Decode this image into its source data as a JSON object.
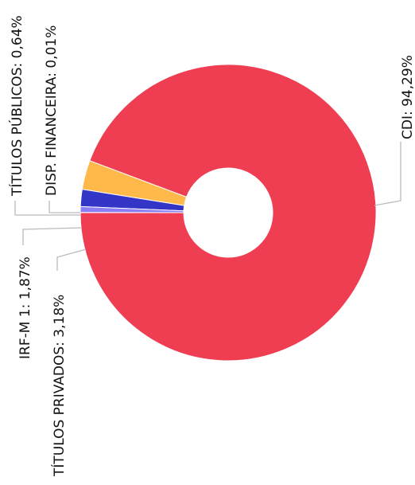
{
  "chart_data": {
    "type": "pie",
    "donut": true,
    "title": "",
    "labels_rotated": "-90deg",
    "slices": [
      {
        "label": "CDI: 94,29%",
        "name": "CDI",
        "value": 94.29,
        "color": "#ef3e52"
      },
      {
        "label": "TÍTULOS PRIVADOS: 3,18%",
        "name": "TÍTULOS PRIVADOS",
        "value": 3.18,
        "color": "#ffb84a"
      },
      {
        "label": "IRF-M 1: 1,87%",
        "name": "IRF-M 1",
        "value": 1.87,
        "color": "#3235c6"
      },
      {
        "label": "TÍTULOS PÚBLICOS: 0,64%",
        "name": "TÍTULOS PÚBLICOS",
        "value": 0.64,
        "color": "#8a7df5"
      },
      {
        "label": "DISP. FINANCEIRA: 0,01%",
        "name": "DISP. FINANCEIRA",
        "value": 0.01,
        "color": "#b7b7e4"
      }
    ]
  }
}
